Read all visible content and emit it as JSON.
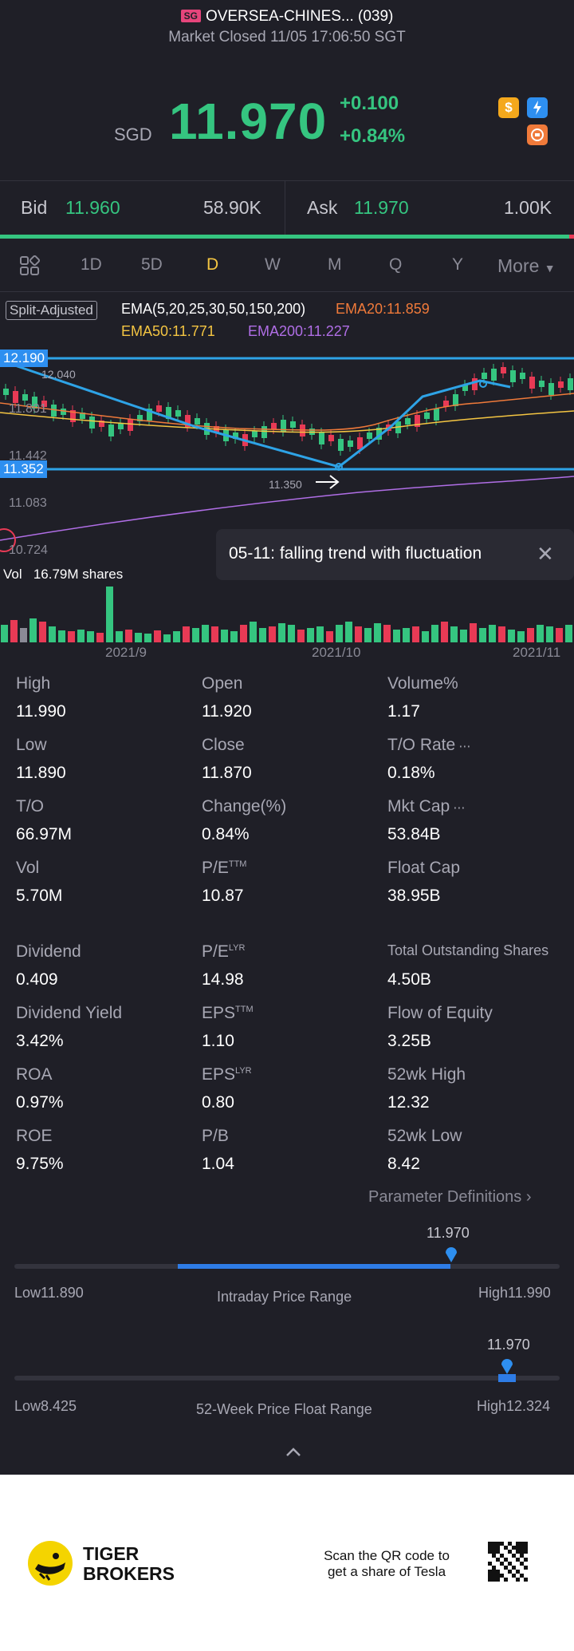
{
  "header": {
    "badge": "SG",
    "title": "OVERSEA-CHINES... (039)",
    "status": "Market Closed 11/05 17:06:50 SGT",
    "currency": "SGD",
    "price": "11.970",
    "change_abs": "+0.100",
    "change_pct": "+0.84%",
    "icon_dollar": "$"
  },
  "bidask": {
    "bid_label": "Bid",
    "bid_price": "11.960",
    "bid_size": "58.90K",
    "ask_label": "Ask",
    "ask_price": "11.970",
    "ask_size": "1.00K"
  },
  "tabs": [
    "1D",
    "5D",
    "D",
    "W",
    "M",
    "Q",
    "Y",
    "More"
  ],
  "chart": {
    "split_label": "Split-Adjusted",
    "ema_label": "EMA(5,20,25,30,50,150,200)",
    "ema20": "EMA20:11.859",
    "ema50": "EMA50:11.771",
    "ema200": "EMA200:11.227",
    "price_high_tag": "12.190",
    "price_low_tag": "11.352",
    "label_12040": "12.040",
    "label_11801": "11.801",
    "label_11442": "11.442",
    "label_11083": "11.083",
    "label_10724": "10.724",
    "label_11350": "11.350",
    "trend_text": "05-11: falling trend with fluctuation",
    "vol_label": "Vol",
    "vol_value": "16.79M shares",
    "dates": [
      "2021/9",
      "2021/10",
      "2021/11"
    ],
    "colors": {
      "up": "#35c580",
      "down": "#e83a55",
      "ema20": "#f07a3a",
      "ema50": "#f4c542",
      "ema200": "#b06ee6",
      "trend": "#2ea3e6"
    }
  },
  "stats": {
    "col1": [
      {
        "label": "High",
        "value": "11.990"
      },
      {
        "label": "Low",
        "value": "11.890"
      },
      {
        "label": "T/O",
        "value": "66.97M"
      },
      {
        "label": "Vol",
        "value": "5.70M"
      },
      {
        "label": "Dividend",
        "value": "0.409"
      },
      {
        "label": "Dividend Yield",
        "value": "3.42%"
      },
      {
        "label": "ROA",
        "value": "0.97%"
      },
      {
        "label": "ROE",
        "value": "9.75%"
      }
    ],
    "col2": [
      {
        "label": "Open",
        "value": "11.920",
        "sup": ""
      },
      {
        "label": "Close",
        "value": "11.870",
        "sup": ""
      },
      {
        "label": "Change(%)",
        "value": "0.84%",
        "sup": ""
      },
      {
        "label": "P/E",
        "value": "10.87",
        "sup": "TTM"
      },
      {
        "label": "P/E",
        "value": "14.98",
        "sup": "LYR"
      },
      {
        "label": "EPS",
        "value": "1.10",
        "sup": "TTM"
      },
      {
        "label": "EPS",
        "value": "0.80",
        "sup": "LYR"
      },
      {
        "label": "P/B",
        "value": "1.04",
        "sup": ""
      }
    ],
    "col3": [
      {
        "label": "Volume%",
        "value": "1.17"
      },
      {
        "label": "T/O Rate",
        "value": "0.18%"
      },
      {
        "label": "Mkt Cap",
        "value": "53.84B"
      },
      {
        "label": "Float Cap",
        "value": "38.95B"
      },
      {
        "label": "Total Outstanding Shares",
        "value": "4.50B"
      },
      {
        "label": "Flow of Equity",
        "value": "3.25B"
      },
      {
        "label": "52wk High",
        "value": "12.32"
      },
      {
        "label": "52wk Low",
        "value": "8.42"
      }
    ],
    "param_defs": "Parameter Definitions"
  },
  "ranges": {
    "intraday": {
      "current": "11.970",
      "low": "Low11.890",
      "high": "High11.990",
      "label": "Intraday Price Range",
      "fill_start": 0.3,
      "fill_end": 0.8
    },
    "week52": {
      "current": "11.970",
      "low": "Low8.425",
      "high": "High12.324",
      "label": "52-Week Price Float Range",
      "position": 0.903
    }
  },
  "footer": {
    "brand_line1": "TIGER",
    "brand_line2": "BROKERS",
    "qr_line1": "Scan the QR code to",
    "qr_line2": "get a share of Tesla"
  }
}
